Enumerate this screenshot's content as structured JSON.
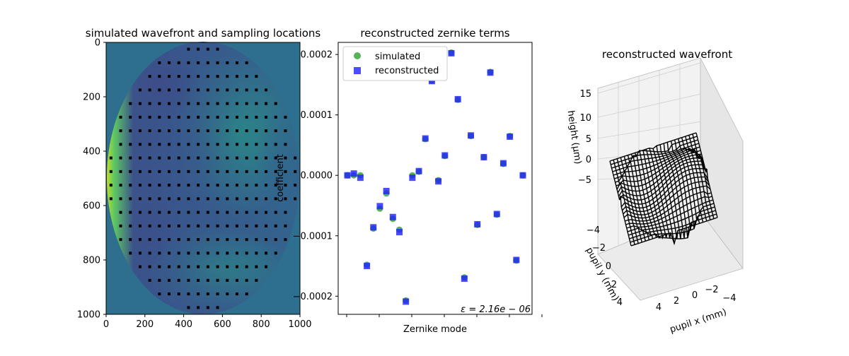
{
  "colors": {
    "wavefront_bg": "#2e6e8e",
    "sample_marker": "#000000",
    "simulated": "#2ca02c",
    "reconstructed": "#1f1fff",
    "mesh": "#000000"
  },
  "chart_data": [
    {
      "type": "heatmap",
      "title": "simulated wavefront and sampling locations",
      "xlabel": "",
      "ylabel": "",
      "xlim": [
        0,
        1000
      ],
      "ylim": [
        1000,
        0
      ],
      "x_ticks": [
        "0",
        "200",
        "400",
        "600",
        "800",
        "1000"
      ],
      "y_ticks": [
        "0",
        "200",
        "400",
        "600",
        "800",
        "1000"
      ],
      "colormap": "viridis",
      "sampling_grid": {
        "spacing": 50,
        "row_range": [
          25,
          975
        ],
        "col_range": [
          25,
          975
        ]
      }
    },
    {
      "type": "scatter",
      "title": "reconstructed zernike terms",
      "xlabel": "Zernike mode",
      "ylabel": "coefficient",
      "ylim": [
        -0.00023,
        0.00022
      ],
      "y_ticks": [
        "0.0002",
        "0.0001",
        "0.0000",
        "−0.0001",
        "−0.0002"
      ],
      "y_tick_values": [
        0.0002,
        0.0001,
        0.0,
        -0.0001,
        -0.0002
      ],
      "legend": "top-left",
      "annotation": "ε = 2.16e − 06",
      "series": [
        {
          "name": "simulated",
          "marker": "circle",
          "values": [
            0.0,
            0.0,
            0.0,
            -0.000148,
            -8.8e-05,
            -5.5e-05,
            -3e-05,
            -7.2e-05,
            -9e-05,
            -0.000207,
            0.0,
            6e-06,
            6e-05,
            0.000157,
            -8e-06,
            3.2e-05,
            0.000203,
            0.000125,
            -0.000169,
            6.5e-05,
            -8.2e-05,
            3e-05,
            0.000171,
            -6.5e-05,
            1.9e-05,
            6.5e-05,
            -0.000141,
            0.0
          ]
        },
        {
          "name": "reconstructed",
          "marker": "square",
          "values": [
            0.0,
            3e-06,
            -4e-06,
            -0.00015,
            -8.6e-05,
            -5.1e-05,
            -2.6e-05,
            -6.9e-05,
            -9.4e-05,
            -0.000209,
            -4e-06,
            7e-06,
            6.1e-05,
            0.000156,
            -1e-05,
            3.3e-05,
            0.000202,
            0.000126,
            -0.000171,
            6.6e-05,
            -8.1e-05,
            3e-05,
            0.00017,
            -6.4e-05,
            2e-05,
            6.4e-05,
            -0.00014,
            0.0
          ]
        }
      ]
    },
    {
      "type": "surface",
      "title": "reconstructed wavefront",
      "xlabel": "pupil x (mm)",
      "ylabel": "pupil y (mm)",
      "zlabel": "height (μm)",
      "x_ticks": [
        "4",
        "2",
        "0",
        "−2",
        "−4"
      ],
      "y_ticks": [
        "−4",
        "−2",
        "0",
        "2",
        "4"
      ],
      "z_ticks": [
        "15",
        "10",
        "5",
        "0",
        "−5"
      ]
    }
  ]
}
